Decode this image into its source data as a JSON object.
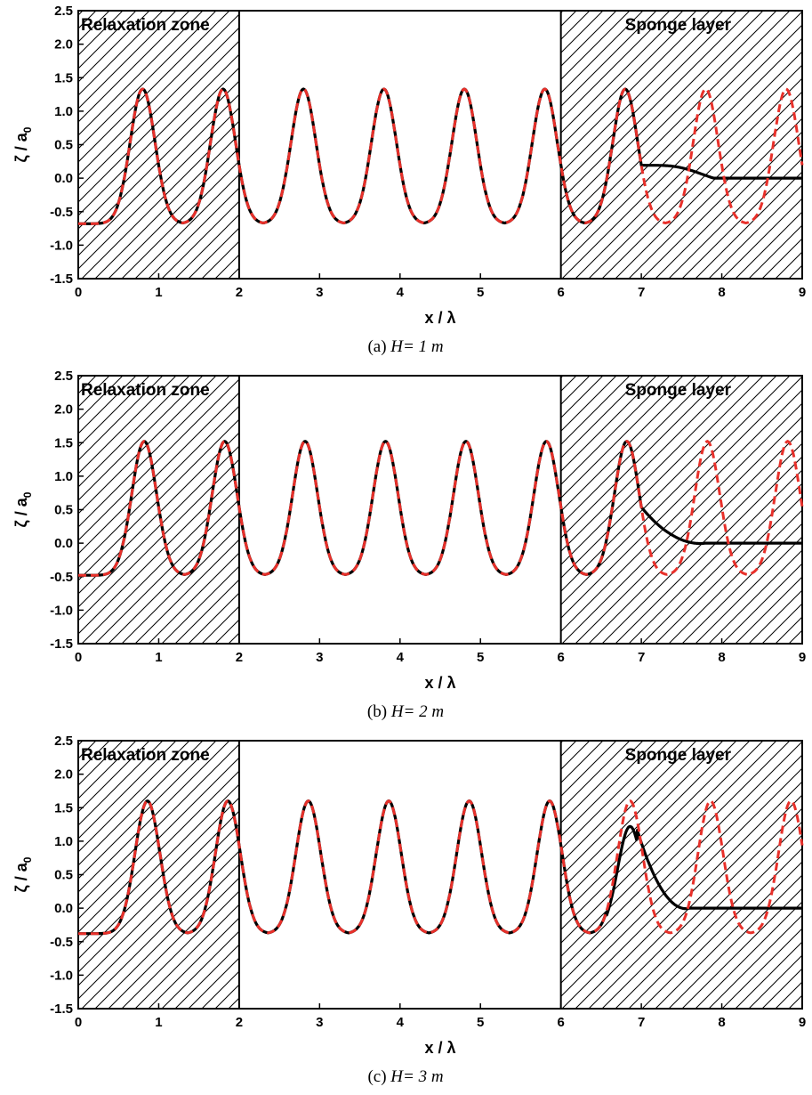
{
  "chart_data": [
    {
      "type": "line",
      "caption_prefix": "(a)",
      "caption_eq": "H= 1 m",
      "xlabel": "x / λ",
      "ylabel": "ζ / a0",
      "xlim": [
        0,
        9
      ],
      "ylim": [
        -1.5,
        2.5
      ],
      "xticks": [
        "0",
        "1",
        "2",
        "3",
        "4",
        "5",
        "6",
        "7",
        "8",
        "9"
      ],
      "yticks": [
        "-1.5",
        "-1.0",
        "-0.5",
        "0.0",
        "0.5",
        "1.0",
        "1.5",
        "2.0",
        "2.5"
      ],
      "zones": [
        {
          "label": "Relaxation zone",
          "x_start": 0,
          "x_end": 2
        },
        {
          "label": "Sponge layer",
          "x_start": 6,
          "x_end": 9
        }
      ],
      "wave": {
        "crest": 1.33,
        "trough": -0.68,
        "peak_positions": [
          0.8,
          1.8,
          2.8,
          3.8,
          4.8,
          5.8,
          6.8,
          7.8,
          8.8
        ]
      },
      "series": [
        {
          "style": "solid",
          "color": "#000000",
          "damped_from": 7.0,
          "damped_end": 7.9,
          "bump": 0.14
        },
        {
          "style": "dashed",
          "color": "#e8302a"
        }
      ]
    },
    {
      "type": "line",
      "caption_prefix": "(b)",
      "caption_eq": "H= 2 m",
      "xlabel": "x / λ",
      "ylabel": "ζ / a0",
      "xlim": [
        0,
        9
      ],
      "ylim": [
        -1.5,
        2.5
      ],
      "xticks": [
        "0",
        "1",
        "2",
        "3",
        "4",
        "5",
        "6",
        "7",
        "8",
        "9"
      ],
      "yticks": [
        "-1.5",
        "-1.0",
        "-0.5",
        "0.0",
        "0.5",
        "1.0",
        "1.5",
        "2.0",
        "2.5"
      ],
      "zones": [
        {
          "label": "Relaxation zone",
          "x_start": 0,
          "x_end": 2
        },
        {
          "label": "Sponge layer",
          "x_start": 6,
          "x_end": 9
        }
      ],
      "wave": {
        "crest": 1.52,
        "trough": -0.48,
        "peak_positions": [
          0.82,
          1.82,
          2.82,
          3.82,
          4.82,
          5.82,
          6.82,
          7.82,
          8.82
        ]
      },
      "series": [
        {
          "style": "solid",
          "color": "#000000",
          "damped_from": 7.0,
          "damped_end": 7.8,
          "bump": 0.02
        },
        {
          "style": "dashed",
          "color": "#e8302a"
        }
      ]
    },
    {
      "type": "line",
      "caption_prefix": "(c)",
      "caption_eq": "H= 3 m",
      "xlabel": "x / λ",
      "ylabel": "ζ / a0",
      "xlim": [
        0,
        9
      ],
      "ylim": [
        -1.5,
        2.5
      ],
      "xticks": [
        "0",
        "1",
        "2",
        "3",
        "4",
        "5",
        "6",
        "7",
        "8",
        "9"
      ],
      "yticks": [
        "-1.5",
        "-1.0",
        "-0.5",
        "0.0",
        "0.5",
        "1.0",
        "1.5",
        "2.0",
        "2.5"
      ],
      "zones": [
        {
          "label": "Relaxation zone",
          "x_start": 0,
          "x_end": 2
        },
        {
          "label": "Sponge layer",
          "x_start": 6,
          "x_end": 9
        }
      ],
      "wave": {
        "crest": 1.6,
        "trough": -0.38,
        "peak_positions": [
          0.86,
          1.86,
          2.86,
          3.86,
          4.86,
          5.86,
          6.86,
          7.86,
          8.86
        ]
      },
      "series": [
        {
          "style": "solid",
          "color": "#000000",
          "damped_from": 6.95,
          "damped_end": 7.6,
          "bump": 0.0,
          "last_peak": 1.22
        },
        {
          "style": "dashed",
          "color": "#e8302a"
        }
      ]
    }
  ]
}
